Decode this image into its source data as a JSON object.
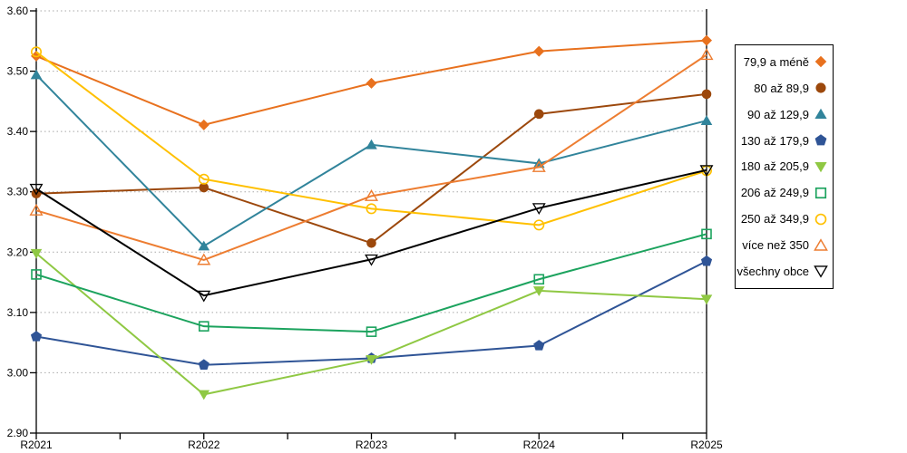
{
  "chart_data": {
    "type": "line",
    "title": "",
    "xlabel": "",
    "ylabel": "",
    "categories": [
      "R2021",
      "R2022",
      "R2023",
      "R2024",
      "R2025"
    ],
    "series": [
      {
        "name": "79,9 a méně",
        "marker": "diamond-filled",
        "color": "#E8711E",
        "values": [
          3.525,
          3.411,
          3.48,
          3.533,
          3.551
        ]
      },
      {
        "name": "80 až 89,9",
        "marker": "circle-filled",
        "color": "#9C480C",
        "values": [
          3.297,
          3.307,
          3.215,
          3.429,
          3.462
        ]
      },
      {
        "name": "90 až 129,9",
        "marker": "triangle-up-filled",
        "color": "#31849B",
        "values": [
          3.494,
          3.21,
          3.378,
          3.347,
          3.418
        ]
      },
      {
        "name": "130 až 179,9",
        "marker": "pentagon-filled",
        "color": "#2F5496",
        "values": [
          3.06,
          3.013,
          3.024,
          3.045,
          3.185
        ]
      },
      {
        "name": "180 až 205,9",
        "marker": "triangle-down-filled",
        "color": "#8FC843",
        "values": [
          3.198,
          2.964,
          3.022,
          3.136,
          3.122
        ]
      },
      {
        "name": "206 až 249,9",
        "marker": "square-open",
        "color": "#1CA35E",
        "values": [
          3.163,
          3.077,
          3.068,
          3.155,
          3.23
        ]
      },
      {
        "name": "250 až 349,9",
        "marker": "circle-open",
        "color": "#FFC000",
        "values": [
          3.532,
          3.321,
          3.272,
          3.245,
          3.335
        ]
      },
      {
        "name": "více než 350",
        "marker": "triangle-up-open",
        "color": "#ED7D31",
        "values": [
          3.269,
          3.187,
          3.293,
          3.341,
          3.527
        ]
      },
      {
        "name": "všechny obce",
        "marker": "triangle-down-open",
        "color": "#000000",
        "values": [
          3.305,
          3.128,
          3.188,
          3.273,
          3.336
        ]
      }
    ],
    "ylim": [
      2.9,
      3.6
    ],
    "ytick_step": 0.1,
    "ytick_labels": [
      "2.90",
      "3.00",
      "3.10",
      "3.20",
      "3.30",
      "3.40",
      "3.50",
      "3.60"
    ],
    "grid": "horizontal-dotted",
    "gridline_color": "#A9A9A9",
    "axis_color": "#000000",
    "legend_position": "right"
  }
}
